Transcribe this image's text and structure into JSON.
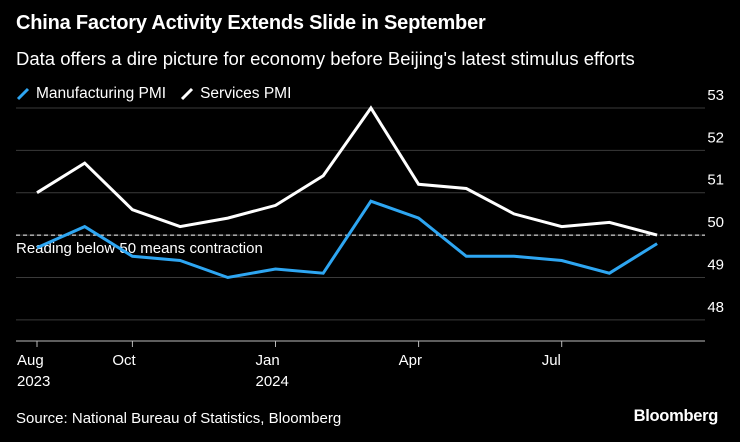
{
  "header": {
    "title": "China Factory Activity Extends Slide in September",
    "subtitle": "Data offers a dire picture for economy before Beijing's latest stimulus efforts"
  },
  "legend": {
    "items": [
      {
        "label": "Manufacturing PMI",
        "color": "#2ea6f2"
      },
      {
        "label": "Services PMI",
        "color": "#ffffff"
      }
    ]
  },
  "footer": {
    "source": "Source: National Bureau of Statistics, Bloomberg",
    "brand": "Bloomberg"
  },
  "annotation": {
    "text": "Reading below 50 means contraction",
    "threshold": 50
  },
  "chart_data": {
    "type": "line",
    "title": "China Factory Activity Extends Slide in September",
    "x": [
      "2023-08",
      "2023-09",
      "2023-10",
      "2023-11",
      "2023-12",
      "2024-01",
      "2024-02",
      "2024-03",
      "2024-04",
      "2024-05",
      "2024-06",
      "2024-07",
      "2024-08",
      "2024-09"
    ],
    "series": [
      {
        "name": "Manufacturing PMI",
        "color": "#2ea6f2",
        "values": [
          49.7,
          50.2,
          49.5,
          49.4,
          49.0,
          49.2,
          49.1,
          50.8,
          50.4,
          49.5,
          49.5,
          49.4,
          49.1,
          49.8
        ]
      },
      {
        "name": "Services PMI",
        "color": "#ffffff",
        "values": [
          51.0,
          51.7,
          50.6,
          50.2,
          50.4,
          50.7,
          51.4,
          53.0,
          51.2,
          51.1,
          50.5,
          50.2,
          50.3,
          50.0
        ]
      }
    ],
    "ylim": [
      47.5,
      53
    ],
    "yticks": [
      48,
      49,
      50,
      51,
      52,
      53
    ],
    "xticks": [
      {
        "index": 0,
        "label": "Aug",
        "sublabel": "2023"
      },
      {
        "index": 2,
        "label": "Oct",
        "sublabel": ""
      },
      {
        "index": 5,
        "label": "Jan",
        "sublabel": "2024"
      },
      {
        "index": 8,
        "label": "Apr",
        "sublabel": ""
      },
      {
        "index": 11,
        "label": "Jul",
        "sublabel": ""
      }
    ],
    "xlabel": "",
    "ylabel": ""
  }
}
